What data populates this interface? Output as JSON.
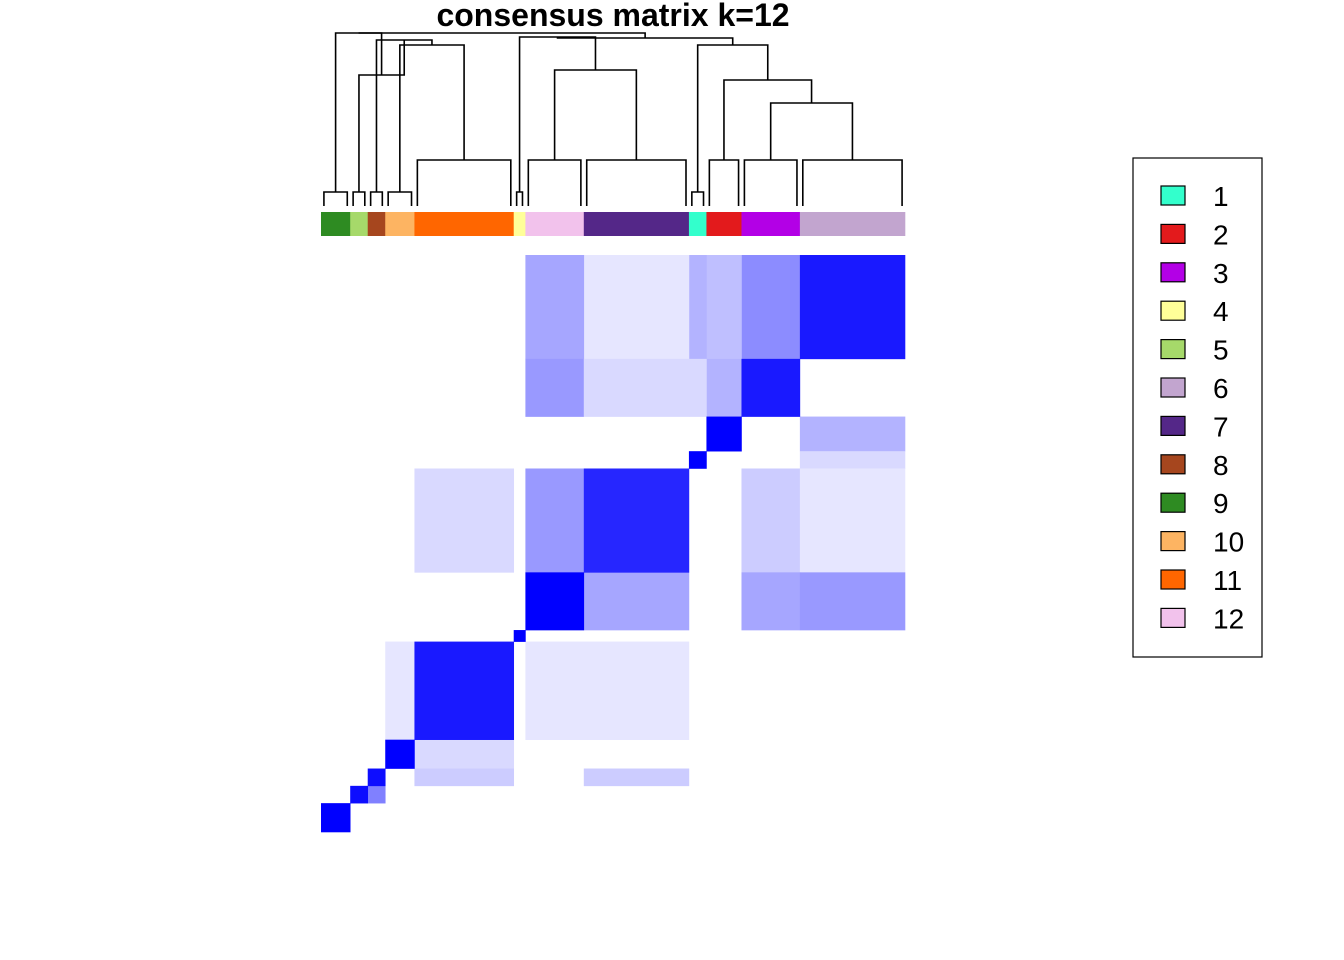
{
  "chart_data": {
    "type": "heatmap",
    "title": "consensus matrix k=12",
    "value_range": [
      0,
      1
    ],
    "color_low": "#ffffff",
    "color_high": "#0000ff",
    "cluster_colors": {
      "1": "#33ffcc",
      "2": "#e31a1c",
      "3": "#b300e6",
      "4": "#ffff99",
      "5": "#a6d96a",
      "6": "#c2a5cf",
      "7": "#542788",
      "8": "#a6461e",
      "9": "#2e8b22",
      "10": "#fdb462",
      "11": "#ff6600",
      "12": "#f2c2ec"
    },
    "column_cluster_order": [
      {
        "cluster": 9,
        "n": 5
      },
      {
        "cluster": 5,
        "n": 3
      },
      {
        "cluster": 8,
        "n": 3
      },
      {
        "cluster": 10,
        "n": 5
      },
      {
        "cluster": 11,
        "n": 17
      },
      {
        "cluster": 4,
        "n": 2
      },
      {
        "cluster": 12,
        "n": 10
      },
      {
        "cluster": 7,
        "n": 18
      },
      {
        "cluster": 1,
        "n": 3
      },
      {
        "cluster": 2,
        "n": 6
      },
      {
        "cluster": 3,
        "n": 10
      },
      {
        "cluster": 6,
        "n": 18
      }
    ],
    "diagonal_blocks": [
      {
        "cluster": 6,
        "value": 0.9
      },
      {
        "cluster": 3,
        "value": 0.9
      },
      {
        "cluster": 2,
        "value": 1.0
      },
      {
        "cluster": 1,
        "value": 1.0
      },
      {
        "cluster": 7,
        "value": 0.85
      },
      {
        "cluster": 12,
        "value": 1.0
      },
      {
        "cluster": 4,
        "value": 1.0
      },
      {
        "cluster": 11,
        "value": 0.9
      },
      {
        "cluster": 10,
        "value": 1.0
      },
      {
        "cluster": 8,
        "value": 0.95
      },
      {
        "cluster": 5,
        "value": 0.95
      },
      {
        "cluster": 9,
        "value": 1.0
      }
    ],
    "off_diagonal": [
      {
        "rows": 6,
        "cols": 3,
        "value": 0.45
      },
      {
        "rows": 6,
        "cols": 2,
        "value": 0.25
      },
      {
        "rows": 6,
        "cols": 1,
        "value": 0.3
      },
      {
        "rows": 6,
        "cols": 7,
        "value": 0.1
      },
      {
        "rows": 6,
        "cols": 12,
        "value": 0.35
      },
      {
        "rows": 3,
        "cols": 2,
        "value": 0.3
      },
      {
        "rows": 3,
        "cols": 12,
        "value": 0.4
      },
      {
        "rows": 3,
        "cols": 7,
        "value": 0.15
      },
      {
        "rows": 3,
        "cols": 1,
        "value": 0.15
      },
      {
        "rows": 2,
        "cols": 6,
        "value": 0.3
      },
      {
        "rows": 1,
        "cols": 6,
        "value": 0.15
      },
      {
        "rows": 7,
        "cols": 12,
        "value": 0.4
      },
      {
        "rows": 7,
        "cols": 3,
        "value": 0.2
      },
      {
        "rows": 7,
        "cols": 6,
        "value": 0.1
      },
      {
        "rows": 7,
        "cols": 11,
        "value": 0.15
      },
      {
        "rows": 12,
        "cols": 7,
        "value": 0.35
      },
      {
        "rows": 12,
        "cols": 3,
        "value": 0.35
      },
      {
        "rows": 12,
        "cols": 6,
        "value": 0.4
      },
      {
        "rows": 11,
        "cols": 10,
        "value": 0.1
      },
      {
        "rows": 11,
        "cols": 12,
        "value": 0.1
      },
      {
        "rows": 11,
        "cols": 7,
        "value": 0.1
      },
      {
        "rows": 10,
        "cols": 11,
        "value": 0.15
      },
      {
        "rows": 8,
        "cols": 11,
        "value": 0.2
      },
      {
        "rows": 8,
        "cols": 7,
        "value": 0.2
      },
      {
        "rows": 5,
        "cols": 8,
        "value": 0.5
      }
    ],
    "legend": {
      "title": "",
      "entries": [
        "1",
        "2",
        "3",
        "4",
        "5",
        "6",
        "7",
        "8",
        "9",
        "10",
        "11",
        "12"
      ],
      "placement": "right"
    }
  }
}
